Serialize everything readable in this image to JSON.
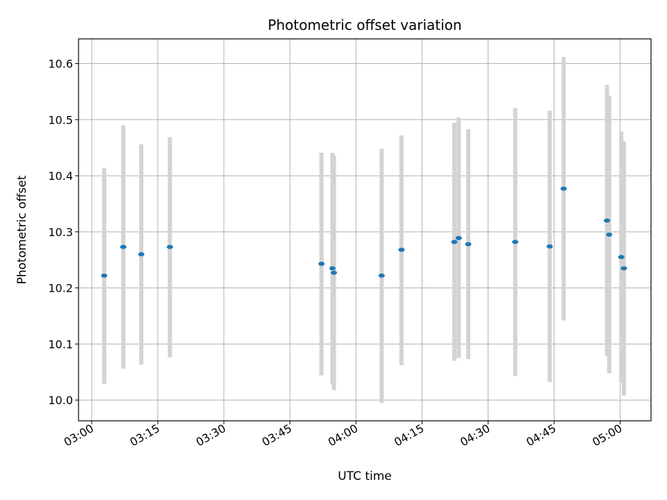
{
  "chart_data": {
    "type": "scatter",
    "title": "Photometric offset variation",
    "xlabel": "UTC time",
    "ylabel": "Photometric offset",
    "x_unit": "UTC time",
    "xlim": [
      "02:57",
      "05:07"
    ],
    "ylim": [
      9.963,
      10.644
    ],
    "grid": true,
    "x_ticks": [
      "03:00",
      "03:15",
      "03:30",
      "03:45",
      "04:00",
      "04:15",
      "04:30",
      "04:45",
      "05:00"
    ],
    "y_ticks": [
      "10.0",
      "10.1",
      "10.2",
      "10.3",
      "10.4",
      "10.5",
      "10.6"
    ],
    "marker_color": "#1f77b4",
    "errorbar_color": "#d3d3d3",
    "points": [
      {
        "time": "03:02:50",
        "y": 10.222,
        "err_low": 10.029,
        "err_high": 10.414
      },
      {
        "time": "03:07:10",
        "y": 10.273,
        "err_low": 10.056,
        "err_high": 10.49
      },
      {
        "time": "03:11:15",
        "y": 10.26,
        "err_low": 10.063,
        "err_high": 10.456
      },
      {
        "time": "03:17:45",
        "y": 10.273,
        "err_low": 10.076,
        "err_high": 10.469
      },
      {
        "time": "03:52:10",
        "y": 10.243,
        "err_low": 10.044,
        "err_high": 10.441
      },
      {
        "time": "03:54:40",
        "y": 10.235,
        "err_low": 10.028,
        "err_high": 10.441
      },
      {
        "time": "03:55:00",
        "y": 10.227,
        "err_low": 10.018,
        "err_high": 10.436
      },
      {
        "time": "04:05:50",
        "y": 10.222,
        "err_low": 9.995,
        "err_high": 10.448
      },
      {
        "time": "04:10:20",
        "y": 10.268,
        "err_low": 10.062,
        "err_high": 10.472
      },
      {
        "time": "04:22:20",
        "y": 10.282,
        "err_low": 10.07,
        "err_high": 10.494
      },
      {
        "time": "04:23:20",
        "y": 10.289,
        "err_low": 10.075,
        "err_high": 10.504
      },
      {
        "time": "04:25:30",
        "y": 10.278,
        "err_low": 10.073,
        "err_high": 10.483
      },
      {
        "time": "04:36:10",
        "y": 10.282,
        "err_low": 10.043,
        "err_high": 10.521
      },
      {
        "time": "04:44:00",
        "y": 10.274,
        "err_low": 10.032,
        "err_high": 10.516
      },
      {
        "time": "04:47:10",
        "y": 10.377,
        "err_low": 10.142,
        "err_high": 10.612
      },
      {
        "time": "04:57:00",
        "y": 10.32,
        "err_low": 10.079,
        "err_high": 10.562
      },
      {
        "time": "04:57:30",
        "y": 10.295,
        "err_low": 10.048,
        "err_high": 10.543
      },
      {
        "time": "05:00:15",
        "y": 10.255,
        "err_low": 10.031,
        "err_high": 10.479
      },
      {
        "time": "05:00:50",
        "y": 10.235,
        "err_low": 10.008,
        "err_high": 10.461
      }
    ]
  }
}
